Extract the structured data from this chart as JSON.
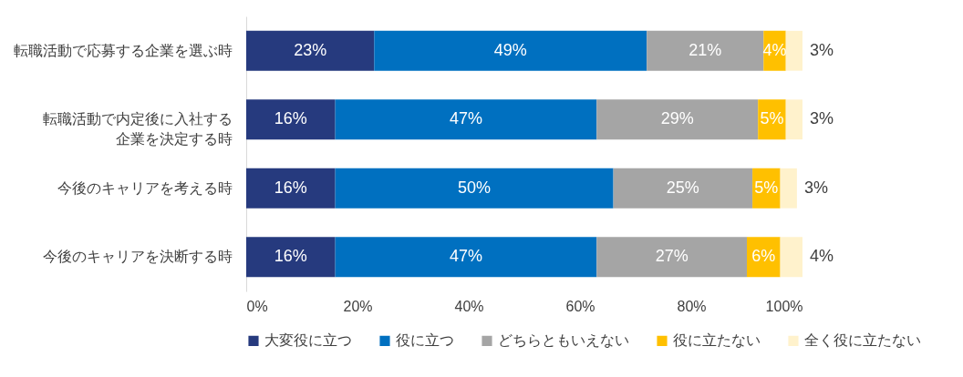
{
  "chart_data": {
    "type": "bar",
    "orientation": "horizontal",
    "stacked": true,
    "categories": [
      "転職活動で応募する企業を選ぶ時",
      "転職活動で内定後に入社する企業を決定する時",
      "今後のキャリアを考える時",
      "今後のキャリアを決断する時"
    ],
    "series": [
      {
        "name": "大変役に立つ",
        "color": "#263a7e",
        "values": [
          23,
          16,
          16,
          16
        ],
        "value_labels": [
          "23%",
          "16%",
          "16%",
          "16%"
        ]
      },
      {
        "name": "役に立つ",
        "color": "#0070c0",
        "values": [
          49,
          47,
          50,
          47
        ],
        "value_labels": [
          "49%",
          "47%",
          "50%",
          "47%"
        ]
      },
      {
        "name": "どちらともいえない",
        "color": "#a5a5a5",
        "values": [
          21,
          29,
          25,
          27
        ],
        "value_labels": [
          "21%",
          "29%",
          "25%",
          "27%"
        ]
      },
      {
        "name": "役に立たない",
        "color": "#ffc000",
        "values": [
          4,
          5,
          5,
          6
        ],
        "value_labels": [
          "4%",
          "5%",
          "5%",
          "6%"
        ]
      },
      {
        "name": "全く役に立たない",
        "color": "#fff2cc",
        "values": [
          3,
          3,
          3,
          4
        ],
        "value_labels": [
          "3%",
          "3%",
          "3%",
          "4%"
        ]
      }
    ],
    "xlim": [
      0,
      100
    ],
    "xticks": [
      {
        "value": 0,
        "label": "0%"
      },
      {
        "value": 20,
        "label": "20%"
      },
      {
        "value": 40,
        "label": "40%"
      },
      {
        "value": 60,
        "label": "60%"
      },
      {
        "value": 80,
        "label": "80%"
      },
      {
        "value": 100,
        "label": "100%"
      }
    ],
    "grid": false,
    "legend": "bottom"
  }
}
